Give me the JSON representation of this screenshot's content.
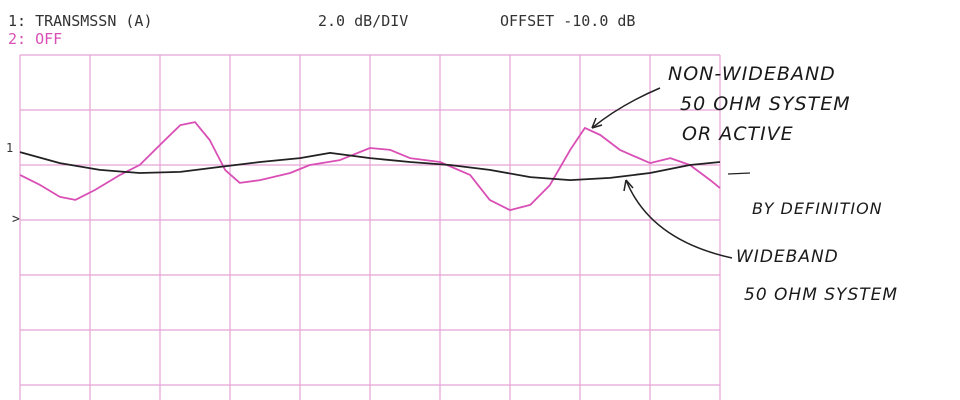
{
  "chart_data": {
    "type": "line",
    "header": {
      "trace1_label": "1:  TRANSMSSN  (A)",
      "scale": "2.0 dB/DIV",
      "offset": "OFFSET -10.0 dB",
      "trace2_label": "2:  OFF"
    },
    "reference_marker": "1",
    "marker_symbol": ">",
    "xlim": [
      0,
      10
    ],
    "ylim": [
      -22,
      -10
    ],
    "xticks": [
      0,
      1,
      2,
      3,
      4,
      5,
      6,
      7,
      8,
      9,
      10
    ],
    "yticks": [
      -22,
      -20,
      -18,
      -16,
      -14,
      -12,
      -10
    ],
    "grid": true,
    "grid_color": "#e6a3d6",
    "series": [
      {
        "name": "NON-WIDEBAND 50 OHM SYSTEM OR ACTIVE",
        "color": "#d94fb5",
        "x": [
          0,
          0.29,
          0.57,
          0.79,
          1.07,
          1.43,
          1.71,
          2.0,
          2.29,
          2.5,
          2.71,
          2.93,
          3.14,
          3.43,
          3.86,
          4.14,
          4.57,
          5.0,
          5.29,
          5.57,
          6.0,
          6.43,
          6.71,
          7.0,
          7.29,
          7.57,
          7.86,
          8.07,
          8.29,
          8.57,
          9.0,
          9.29,
          9.57,
          9.86,
          10
        ],
        "values": [
          -14.36,
          -14.73,
          -15.16,
          -15.27,
          -14.91,
          -14.36,
          -14.0,
          -13.27,
          -12.55,
          -12.44,
          -13.09,
          -14.18,
          -14.65,
          -14.55,
          -14.29,
          -14.0,
          -13.82,
          -13.38,
          -13.45,
          -13.75,
          -13.89,
          -14.36,
          -15.27,
          -15.64,
          -15.45,
          -14.73,
          -13.45,
          -12.65,
          -12.91,
          -13.45,
          -13.93,
          -13.75,
          -14.0,
          -14.55,
          -14.84
        ]
      },
      {
        "name": "WIDEBAND 50 OHM SYSTEM",
        "color": "#222222",
        "x": [
          0,
          0.57,
          1.14,
          1.71,
          2.29,
          2.86,
          3.43,
          4.0,
          4.43,
          5.0,
          5.57,
          6.14,
          6.71,
          7.29,
          7.86,
          8.43,
          9.0,
          9.57,
          10
        ],
        "values": [
          -13.53,
          -13.93,
          -14.18,
          -14.29,
          -14.25,
          -14.07,
          -13.89,
          -13.75,
          -13.56,
          -13.75,
          -13.89,
          -14.0,
          -14.18,
          -14.44,
          -14.55,
          -14.47,
          -14.29,
          -14.0,
          -13.89
        ]
      }
    ],
    "annotations": [
      "NON-WIDEBAND",
      "50 OHM SYSTEM",
      "OR ACTIVE",
      "BY DEFINITION",
      "WIDEBAND",
      "50 OHM SYSTEM"
    ]
  }
}
